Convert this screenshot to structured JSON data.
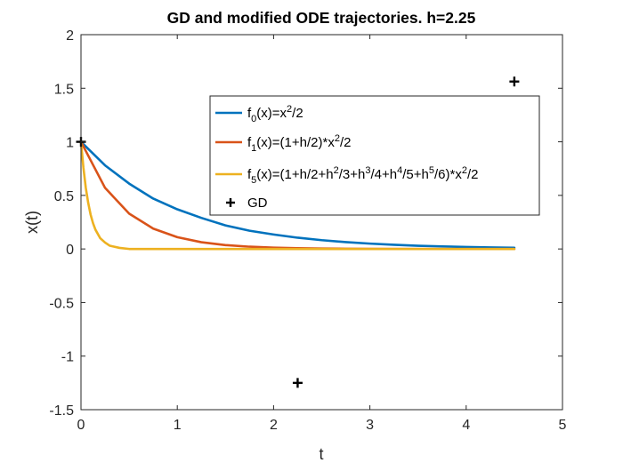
{
  "chart_data": {
    "type": "line",
    "title": "GD and modified ODE trajectories. h=2.25",
    "xlabel": "t",
    "ylabel": "x(t)",
    "xlim": [
      0,
      5
    ],
    "ylim": [
      -1.5,
      2
    ],
    "xticks": [
      0,
      1,
      2,
      3,
      4,
      5
    ],
    "yticks": [
      -1.5,
      -1,
      -0.5,
      0,
      0.5,
      1,
      1.5,
      2
    ],
    "grid": false,
    "legend_position": "upper-right",
    "series": [
      {
        "name": "f0",
        "kind": "line",
        "color": "#0072BD",
        "x": [
          0,
          0.25,
          0.5,
          0.75,
          1,
          1.25,
          1.5,
          1.75,
          2,
          2.25,
          2.5,
          2.75,
          3,
          3.25,
          3.5,
          3.75,
          4,
          4.25,
          4.5
        ],
        "y": [
          1,
          0.78,
          0.61,
          0.47,
          0.37,
          0.29,
          0.22,
          0.17,
          0.135,
          0.105,
          0.082,
          0.064,
          0.05,
          0.039,
          0.03,
          0.024,
          0.018,
          0.014,
          0.011
        ]
      },
      {
        "name": "f1",
        "kind": "line",
        "color": "#D95319",
        "x": [
          0,
          0.25,
          0.5,
          0.75,
          1,
          1.25,
          1.5,
          1.75,
          2,
          2.25,
          2.5,
          2.75,
          3,
          3.5,
          4,
          4.5
        ],
        "y": [
          1,
          0.57,
          0.33,
          0.19,
          0.11,
          0.063,
          0.036,
          0.021,
          0.012,
          0.007,
          0.004,
          0.002,
          0.001,
          0,
          0,
          0
        ]
      },
      {
        "name": "f5",
        "kind": "line",
        "color": "#EDB120",
        "x": [
          0,
          0.025,
          0.05,
          0.075,
          0.1,
          0.125,
          0.15,
          0.2,
          0.25,
          0.3,
          0.4,
          0.5,
          1,
          2,
          3,
          4,
          4.5
        ],
        "y": [
          1,
          0.76,
          0.57,
          0.43,
          0.32,
          0.24,
          0.18,
          0.1,
          0.06,
          0.03,
          0.01,
          0,
          0,
          0,
          0,
          0,
          0
        ]
      },
      {
        "name": "GD",
        "kind": "marker",
        "marker": "+",
        "color": "#000000",
        "x": [
          0,
          2.25,
          4.5
        ],
        "y": [
          1,
          -1.25,
          1.5625
        ]
      }
    ]
  },
  "legend": [
    {
      "series": 0,
      "parts": [
        [
          "f",
          ""
        ],
        [
          "0",
          "sub"
        ],
        [
          "(x)=x",
          ""
        ],
        [
          "2",
          "sup"
        ],
        [
          "/2",
          ""
        ]
      ]
    },
    {
      "series": 1,
      "parts": [
        [
          "f",
          ""
        ],
        [
          "1",
          "sub"
        ],
        [
          "(x)=(1+h/2)*x",
          ""
        ],
        [
          "2",
          "sup"
        ],
        [
          "/2",
          ""
        ]
      ]
    },
    {
      "series": 2,
      "parts": [
        [
          "f",
          ""
        ],
        [
          "5",
          "sub"
        ],
        [
          "(x)=(1+h/2+h",
          ""
        ],
        [
          "2",
          "sup"
        ],
        [
          "/3+h",
          ""
        ],
        [
          "3",
          "sup"
        ],
        [
          "/4+h",
          ""
        ],
        [
          "4",
          "sup"
        ],
        [
          "/5+h",
          ""
        ],
        [
          "5",
          "sup"
        ],
        [
          "/6)*x",
          ""
        ],
        [
          "2",
          "sup"
        ],
        [
          "/2",
          ""
        ]
      ]
    },
    {
      "series": 3,
      "parts": [
        [
          "GD",
          ""
        ]
      ]
    }
  ]
}
